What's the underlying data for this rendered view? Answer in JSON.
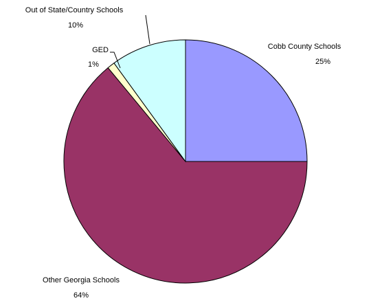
{
  "chart_data": {
    "type": "pie",
    "title": "",
    "legend": "none",
    "slices": [
      {
        "label": "Cobb County Schools",
        "value": 25,
        "percent_label": "25%",
        "color": "#9999ff"
      },
      {
        "label": "Other Georgia Schools",
        "value": 64,
        "percent_label": "64%",
        "color": "#993366"
      },
      {
        "label": "GED",
        "value": 1,
        "percent_label": "1%",
        "color": "#ffffcc"
      },
      {
        "label": "Out of State/Country Schools",
        "value": 10,
        "percent_label": "10%",
        "color": "#ccffff"
      }
    ]
  }
}
